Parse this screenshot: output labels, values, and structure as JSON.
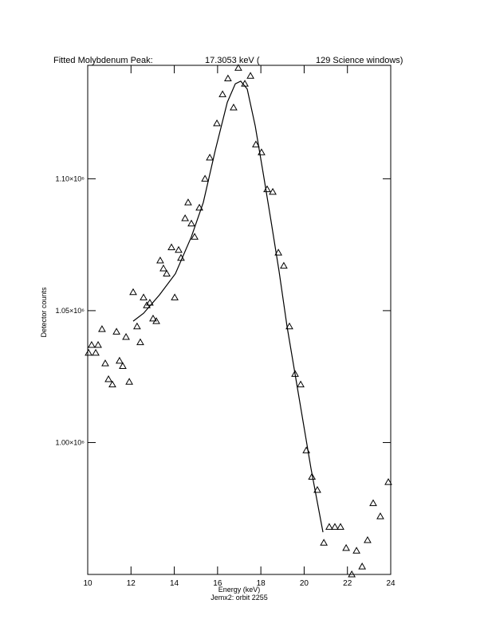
{
  "chart_data": {
    "type": "scatter",
    "title": [
      "Fitted Molybdenum Peak:",
      "17.3053 keV (",
      "129 Science windows)"
    ],
    "xlabel": "Energy (keV)",
    "subtitle": "Jemx2: orbit 2255",
    "ylabel": "Detector counts",
    "xlim": [
      10,
      24
    ],
    "xticks": [
      10,
      12,
      14,
      16,
      18,
      20,
      22,
      24
    ],
    "ylim": [
      950000,
      1143000
    ],
    "yticks": [
      {
        "value": 1000000,
        "label": "1.00×10⁶"
      },
      {
        "value": 1050000,
        "label": "1.05×10⁶"
      },
      {
        "value": 1100000,
        "label": "1.10×10⁶"
      }
    ],
    "color": "#000000",
    "points": {
      "x": [
        10.04,
        10.18,
        10.37,
        10.48,
        10.66,
        10.81,
        10.96,
        11.14,
        11.33,
        11.47,
        11.62,
        11.77,
        11.92,
        12.1,
        12.28,
        12.43,
        12.58,
        12.73,
        12.87,
        13.02,
        13.17,
        13.35,
        13.5,
        13.65,
        13.87,
        14.02,
        14.2,
        14.31,
        14.5,
        14.64,
        14.79,
        14.94,
        15.16,
        15.42,
        15.64,
        15.97,
        16.23,
        16.48,
        16.74,
        16.96,
        17.26,
        17.52,
        17.77,
        18.03,
        18.29,
        18.55,
        18.81,
        19.06,
        19.32,
        19.58,
        19.84,
        20.1,
        20.36,
        20.61,
        20.91,
        21.16,
        21.42,
        21.68,
        21.94,
        22.2,
        22.42,
        22.68,
        22.93,
        23.19,
        23.52,
        23.89
      ],
      "values": [
        1034000,
        1037000,
        1034000,
        1037000,
        1043000,
        1030000,
        1024000,
        1022000,
        1042000,
        1031000,
        1029000,
        1040000,
        1023000,
        1057000,
        1044000,
        1038000,
        1055000,
        1052000,
        1053000,
        1047000,
        1046000,
        1069000,
        1066000,
        1064000,
        1074000,
        1055000,
        1073000,
        1070000,
        1085000,
        1091000,
        1083000,
        1078000,
        1089000,
        1100000,
        1108000,
        1121000,
        1132000,
        1138000,
        1127000,
        1142000,
        1136000,
        1139000,
        1113000,
        1110000,
        1096000,
        1095000,
        1072000,
        1067000,
        1044000,
        1026000,
        1022000,
        997000,
        987000,
        982000,
        962000,
        968000,
        968000,
        968000,
        960000,
        950000,
        959000,
        953000,
        963000,
        977000,
        972000,
        985000
      ]
    },
    "fit": {
      "x": [
        12.1,
        12.58,
        13.32,
        14.05,
        14.79,
        15.34,
        15.9,
        16.45,
        16.82,
        17.07,
        17.37,
        17.74,
        18.11,
        18.47,
        18.84,
        19.21,
        19.58,
        19.95,
        20.32,
        20.87
      ],
      "values": [
        1046000,
        1049000,
        1056000,
        1064000,
        1078000,
        1091000,
        1111000,
        1129000,
        1136000,
        1137000,
        1134000,
        1120000,
        1102000,
        1084000,
        1065000,
        1044000,
        1026000,
        1008000,
        990000,
        966000
      ]
    }
  }
}
